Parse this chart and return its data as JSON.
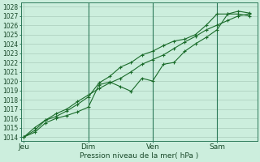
{
  "background_color": "#cceedd",
  "grid_color": "#aaccbb",
  "line_color": "#1a6b2a",
  "vline_color": "#2d7a5a",
  "title": "Pression niveau de la mer( hPa )",
  "ylabel_values": [
    1014,
    1015,
    1016,
    1017,
    1018,
    1019,
    1020,
    1021,
    1022,
    1023,
    1024,
    1025,
    1026,
    1027,
    1028
  ],
  "ylim": [
    1013.6,
    1028.4
  ],
  "x_tick_labels": [
    "Jeu",
    "Dim",
    "Ven",
    "Sam"
  ],
  "x_tick_positions": [
    0,
    48,
    96,
    144
  ],
  "xlim": [
    -2,
    174
  ],
  "line1_x": [
    0,
    8,
    16,
    24,
    32,
    40,
    48,
    56,
    64,
    72,
    80,
    88,
    96,
    104,
    112,
    120,
    128,
    136,
    144,
    152,
    160,
    168
  ],
  "line1_y": [
    1014.0,
    1014.5,
    1015.5,
    1016.0,
    1016.3,
    1016.7,
    1017.2,
    1019.6,
    1019.9,
    1019.4,
    1018.9,
    1020.3,
    1020.0,
    1021.8,
    1022.0,
    1023.2,
    1024.0,
    1024.7,
    1025.5,
    1027.2,
    1027.2,
    1027.0
  ],
  "line2_x": [
    0,
    8,
    16,
    24,
    32,
    40,
    48,
    56,
    64,
    72,
    80,
    88,
    96,
    104,
    112,
    120,
    128,
    136,
    144,
    152,
    160,
    168
  ],
  "line2_y": [
    1014.0,
    1014.7,
    1015.8,
    1016.2,
    1016.8,
    1017.5,
    1018.3,
    1019.8,
    1020.5,
    1021.5,
    1022.0,
    1022.8,
    1023.2,
    1023.8,
    1024.3,
    1024.5,
    1025.0,
    1026.0,
    1027.2,
    1027.2,
    1027.5,
    1027.3
  ],
  "line3_x": [
    0,
    8,
    16,
    24,
    32,
    40,
    48,
    56,
    64,
    72,
    80,
    88,
    96,
    104,
    112,
    120,
    128,
    136,
    144,
    152,
    160,
    168
  ],
  "line3_y": [
    1014.0,
    1015.0,
    1015.8,
    1016.5,
    1017.0,
    1017.8,
    1018.5,
    1019.2,
    1019.8,
    1020.3,
    1021.0,
    1021.8,
    1022.3,
    1022.8,
    1023.5,
    1024.2,
    1024.8,
    1025.5,
    1026.0,
    1026.5,
    1027.0,
    1027.2
  ],
  "vline_positions": [
    48,
    96,
    144
  ],
  "marker_size": 2.5,
  "ylabel_fontsize": 5.5,
  "xlabel_fontsize": 6.5,
  "xtick_fontsize": 6.5
}
